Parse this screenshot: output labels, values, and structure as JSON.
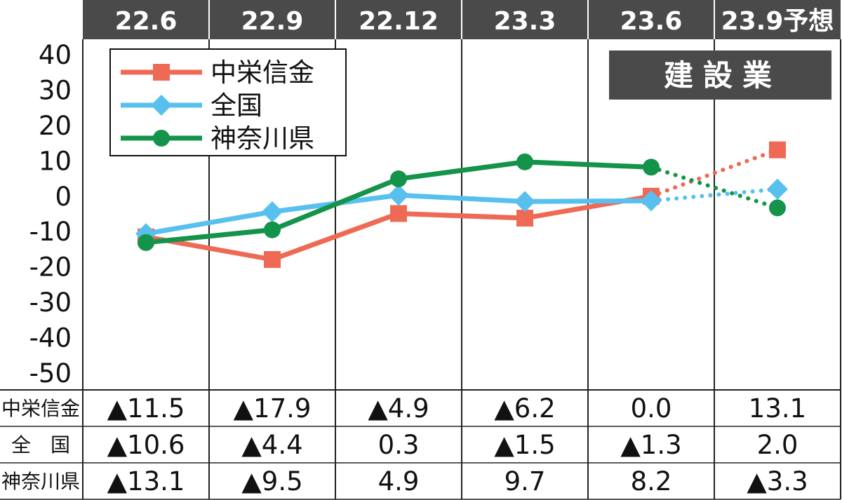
{
  "chart_data": {
    "type": "line",
    "category": "建設業",
    "categories": [
      "22.6",
      "22.9",
      "22.12",
      "23.3",
      "23.6",
      "23.9予想"
    ],
    "y_ticks": [
      "40",
      "30",
      "20",
      "10",
      "0",
      "-10",
      "-20",
      "-30",
      "-40",
      "-50"
    ],
    "ylim": [
      -50,
      40
    ],
    "forecast_from_index": 4,
    "series": [
      {
        "name": "中栄信金",
        "color": "#ee6a55",
        "marker": "square",
        "values": [
          -11.5,
          -17.9,
          -4.9,
          -6.2,
          0.0,
          13.1
        ]
      },
      {
        "name": "全国",
        "color": "#58c0ef",
        "marker": "diamond",
        "values": [
          -10.6,
          -4.4,
          0.3,
          -1.5,
          -1.3,
          2.0
        ]
      },
      {
        "name": "神奈川県",
        "color": "#14934a",
        "marker": "circle",
        "values": [
          -13.1,
          -9.5,
          4.9,
          9.7,
          8.2,
          -3.3
        ]
      }
    ],
    "table": {
      "row_labels": [
        "中栄信金",
        "全　国",
        "神奈川県"
      ],
      "rows": [
        [
          "▲11.5",
          "▲17.9",
          "▲4.9",
          "▲6.2",
          "0.0",
          "13.1"
        ],
        [
          "▲10.6",
          "▲4.4",
          "0.3",
          "▲1.5",
          "▲1.3",
          "2.0"
        ],
        [
          "▲13.1",
          "▲9.5",
          "4.9",
          "9.7",
          "8.2",
          "▲3.3"
        ]
      ]
    }
  },
  "colors": {
    "header_bg": "#4a4a4a",
    "badge_bg": "#4a4a4a",
    "grid": "#222222"
  }
}
